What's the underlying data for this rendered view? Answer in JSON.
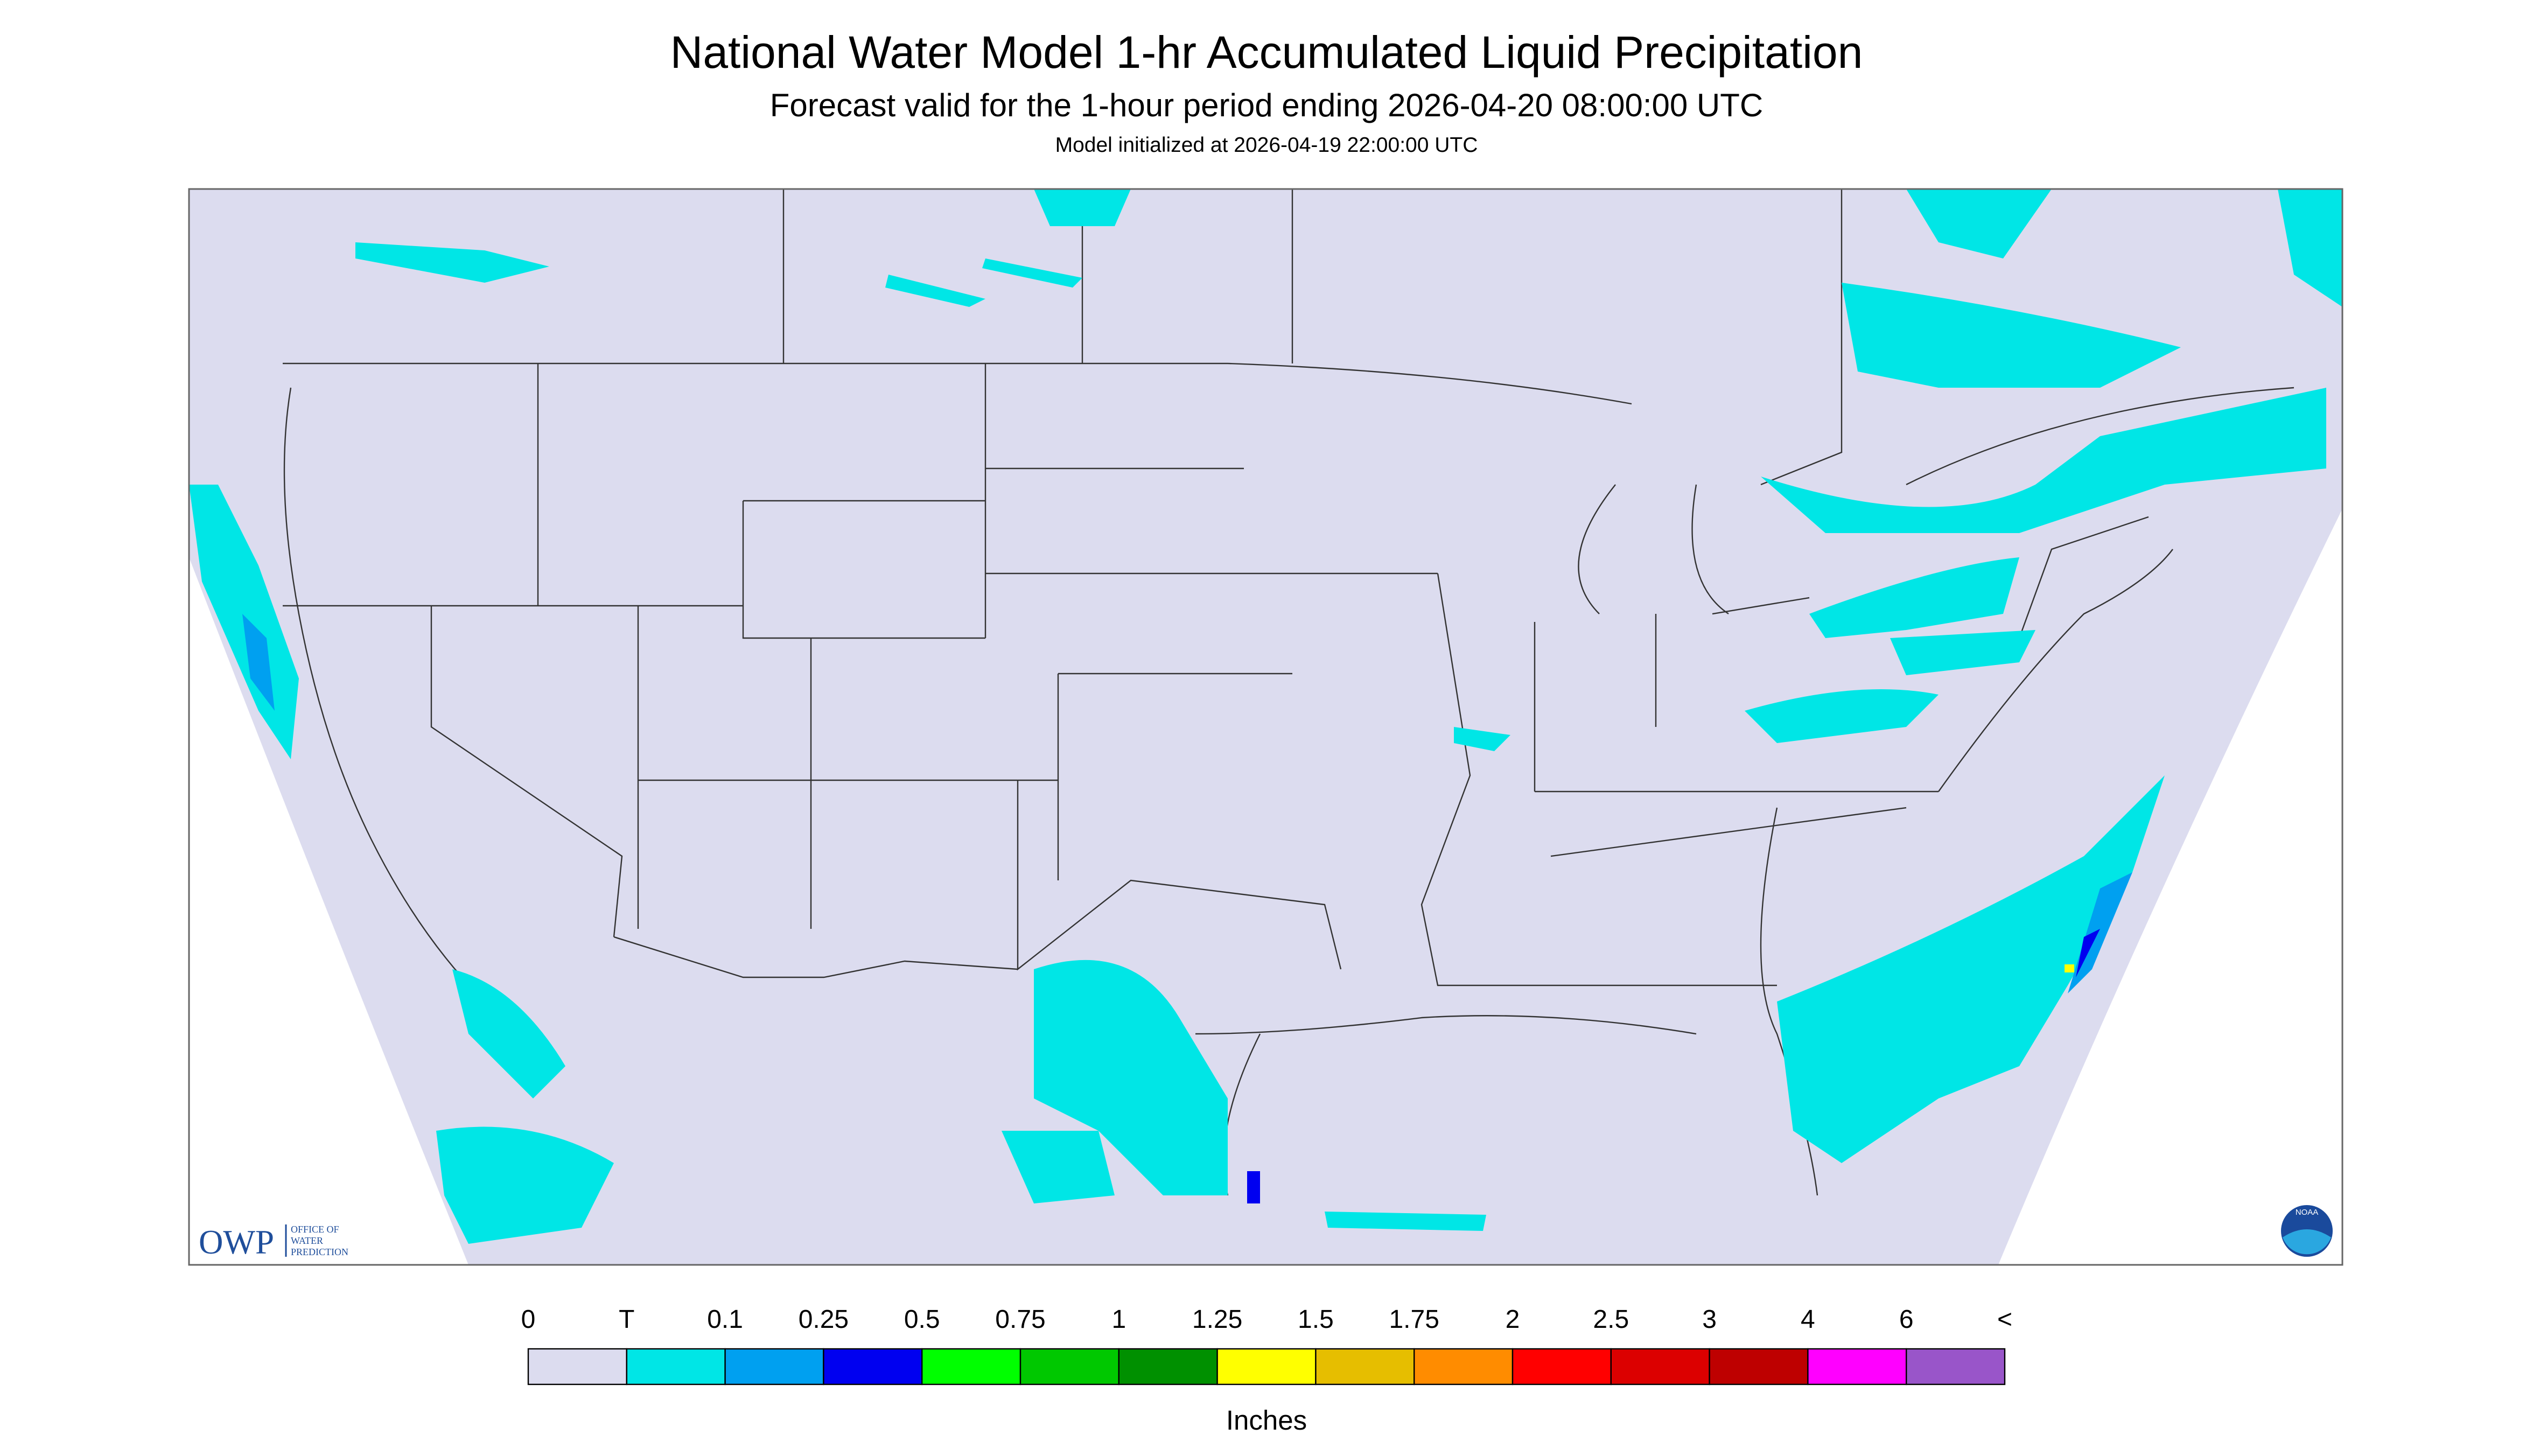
{
  "header": {
    "title": "National Water Model 1-hr Accumulated Liquid Precipitation",
    "subtitle": "Forecast valid for the 1-hour period ending 2026-04-20 08:00:00 UTC",
    "note": "Model initialized at 2026-04-19 22:00:00 UTC"
  },
  "logos": {
    "owp": "OWP",
    "owp_lines": [
      "OFFICE OF",
      "WATER",
      "PREDICTION"
    ],
    "noaa": "NOAA"
  },
  "legend": {
    "labels": [
      "0",
      "T",
      "0.1",
      "0.25",
      "0.5",
      "0.75",
      "1",
      "1.25",
      "1.5",
      "1.75",
      "2",
      "2.5",
      "3",
      "4",
      "6",
      "<"
    ],
    "colors": [
      "#dcdcef",
      "#00e6e6",
      "#00a0f0",
      "#0000f0",
      "#00ff00",
      "#00c800",
      "#009000",
      "#ffff00",
      "#e6be00",
      "#ff8c00",
      "#ff0000",
      "#dc0000",
      "#be0000",
      "#ff00ff",
      "#9955c9"
    ],
    "unit": "Inches"
  }
}
